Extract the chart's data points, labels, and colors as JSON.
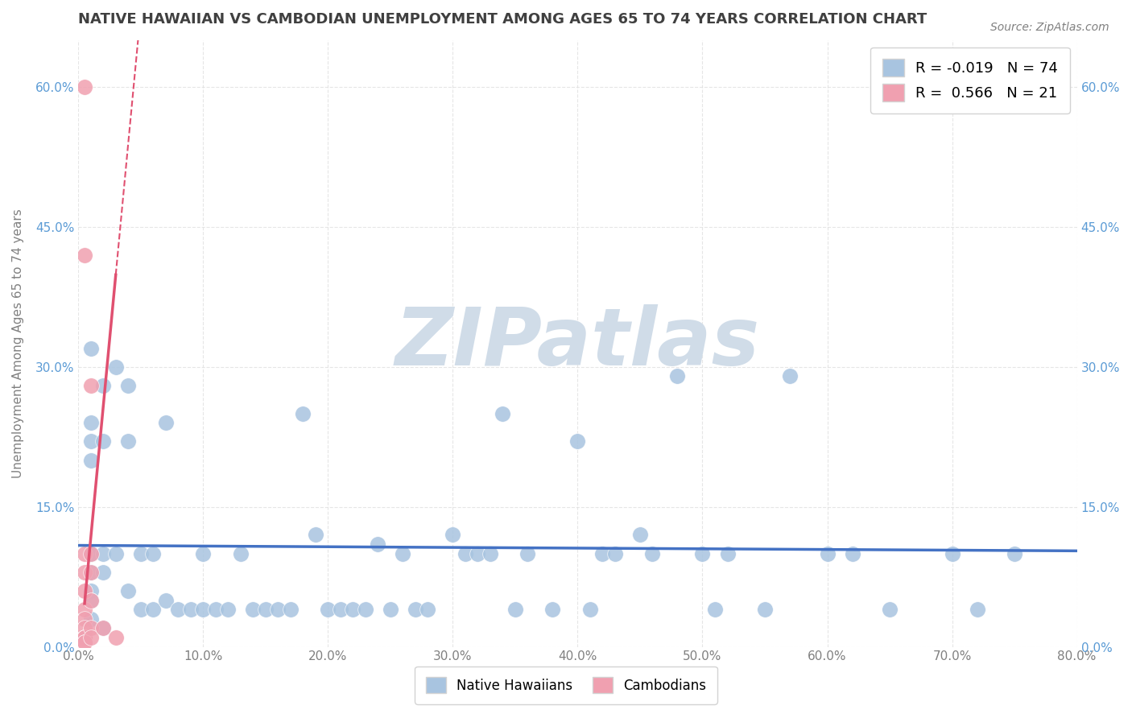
{
  "title": "NATIVE HAWAIIAN VS CAMBODIAN UNEMPLOYMENT AMONG AGES 65 TO 74 YEARS CORRELATION CHART",
  "source": "Source: ZipAtlas.com",
  "xlabel": "",
  "ylabel": "Unemployment Among Ages 65 to 74 years",
  "xlim": [
    0.0,
    0.8
  ],
  "ylim": [
    0.0,
    0.65
  ],
  "xticks": [
    0.0,
    0.1,
    0.2,
    0.3,
    0.4,
    0.5,
    0.6,
    0.7,
    0.8
  ],
  "xticklabels": [
    "0.0%",
    "10.0%",
    "20.0%",
    "30.0%",
    "40.0%",
    "50.0%",
    "60.0%",
    "70.0%",
    "80.0%"
  ],
  "yticks": [
    0.0,
    0.15,
    0.3,
    0.45,
    0.6
  ],
  "yticklabels": [
    "0.0%",
    "15.0%",
    "30.0%",
    "45.0%",
    "60.0%"
  ],
  "legend_blue_label": "Native Hawaiians",
  "legend_pink_label": "Cambodians",
  "R_blue": -0.019,
  "N_blue": 74,
  "R_pink": 0.566,
  "N_pink": 21,
  "blue_color": "#a8c4e0",
  "pink_color": "#f0a0b0",
  "blue_line_color": "#4472c4",
  "pink_line_color": "#e05070",
  "watermark": "ZIPatlas",
  "watermark_color": "#d0dce8",
  "background_color": "#ffffff",
  "grid_color": "#e0e0e0",
  "title_color": "#404040",
  "axis_color": "#808080",
  "native_hawaiian_x": [
    0.01,
    0.01,
    0.01,
    0.01,
    0.01,
    0.01,
    0.01,
    0.01,
    0.01,
    0.01,
    0.02,
    0.02,
    0.02,
    0.02,
    0.02,
    0.03,
    0.03,
    0.04,
    0.04,
    0.04,
    0.05,
    0.05,
    0.06,
    0.06,
    0.07,
    0.07,
    0.08,
    0.09,
    0.1,
    0.1,
    0.11,
    0.12,
    0.13,
    0.14,
    0.15,
    0.16,
    0.17,
    0.18,
    0.19,
    0.2,
    0.21,
    0.22,
    0.23,
    0.24,
    0.25,
    0.26,
    0.27,
    0.28,
    0.3,
    0.31,
    0.32,
    0.33,
    0.34,
    0.35,
    0.36,
    0.38,
    0.4,
    0.41,
    0.42,
    0.43,
    0.45,
    0.46,
    0.48,
    0.5,
    0.51,
    0.52,
    0.55,
    0.57,
    0.6,
    0.62,
    0.65,
    0.7,
    0.72,
    0.75
  ],
  "native_hawaiian_y": [
    0.32,
    0.24,
    0.22,
    0.2,
    0.1,
    0.1,
    0.08,
    0.06,
    0.05,
    0.03,
    0.28,
    0.22,
    0.1,
    0.08,
    0.02,
    0.3,
    0.1,
    0.28,
    0.22,
    0.06,
    0.1,
    0.04,
    0.1,
    0.04,
    0.24,
    0.05,
    0.04,
    0.04,
    0.1,
    0.04,
    0.04,
    0.04,
    0.1,
    0.04,
    0.04,
    0.04,
    0.04,
    0.25,
    0.12,
    0.04,
    0.04,
    0.04,
    0.04,
    0.11,
    0.04,
    0.1,
    0.04,
    0.04,
    0.12,
    0.1,
    0.1,
    0.1,
    0.25,
    0.04,
    0.1,
    0.04,
    0.22,
    0.04,
    0.1,
    0.1,
    0.12,
    0.1,
    0.29,
    0.1,
    0.04,
    0.1,
    0.04,
    0.29,
    0.1,
    0.1,
    0.04,
    0.1,
    0.04,
    0.1
  ],
  "cambodian_x": [
    0.005,
    0.005,
    0.005,
    0.005,
    0.005,
    0.005,
    0.005,
    0.005,
    0.005,
    0.005,
    0.005,
    0.005,
    0.005,
    0.01,
    0.01,
    0.01,
    0.01,
    0.01,
    0.01,
    0.02,
    0.03
  ],
  "cambodian_y": [
    0.6,
    0.42,
    0.1,
    0.08,
    0.06,
    0.04,
    0.03,
    0.02,
    0.01,
    0.01,
    0.01,
    0.005,
    0.005,
    0.28,
    0.1,
    0.08,
    0.05,
    0.02,
    0.01,
    0.02,
    0.01
  ]
}
